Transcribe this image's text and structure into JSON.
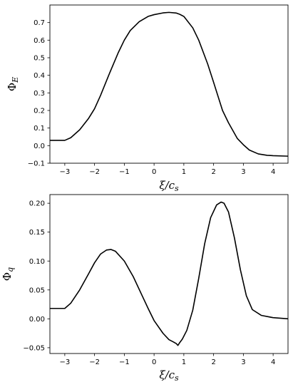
{
  "chart_data": [
    {
      "type": "line",
      "xlabel": "ξ/c",
      "xlabel_sub": "s",
      "ylabel": "Φ",
      "ylabel_sub": "E",
      "xlim": [
        -3.5,
        4.5
      ],
      "ylim": [
        -0.1,
        0.8
      ],
      "xticks": [
        -3,
        -2,
        -1,
        0,
        1,
        2,
        3,
        4
      ],
      "xtick_labels": [
        "−3",
        "−2",
        "−1",
        "0",
        "1",
        "2",
        "3",
        "4"
      ],
      "yticks": [
        -0.1,
        0.0,
        0.1,
        0.2,
        0.3,
        0.4,
        0.5,
        0.6,
        0.7
      ],
      "ytick_labels": [
        "−0.1",
        "0.0",
        "0.1",
        "0.2",
        "0.3",
        "0.4",
        "0.5",
        "0.6",
        "0.7"
      ],
      "grid": false,
      "series": [
        {
          "color": "#000000",
          "x": [
            -3.5,
            -3.0,
            -2.8,
            -2.5,
            -2.2,
            -2.0,
            -1.8,
            -1.5,
            -1.2,
            -1.0,
            -0.8,
            -0.5,
            -0.2,
            0.0,
            0.3,
            0.5,
            0.75,
            0.85,
            1.0,
            1.3,
            1.5,
            1.8,
            2.0,
            2.3,
            2.5,
            2.8,
            3.0,
            3.2,
            3.5,
            3.8,
            4.0,
            4.5
          ],
          "y": [
            0.03,
            0.03,
            0.045,
            0.09,
            0.155,
            0.21,
            0.285,
            0.41,
            0.53,
            0.6,
            0.655,
            0.705,
            0.735,
            0.745,
            0.755,
            0.758,
            0.754,
            0.748,
            0.735,
            0.67,
            0.6,
            0.465,
            0.36,
            0.2,
            0.13,
            0.04,
            0.005,
            -0.025,
            -0.047,
            -0.055,
            -0.057,
            -0.06
          ]
        }
      ]
    },
    {
      "type": "line",
      "xlabel": "ξ/c",
      "xlabel_sub": "s",
      "ylabel": "Φ",
      "ylabel_sub": "q",
      "xlim": [
        -3.5,
        4.5
      ],
      "ylim": [
        -0.06,
        0.215
      ],
      "xticks": [
        -3,
        -2,
        -1,
        0,
        1,
        2,
        3,
        4
      ],
      "xtick_labels": [
        "−3",
        "−2",
        "−1",
        "0",
        "1",
        "2",
        "3",
        "4"
      ],
      "yticks": [
        -0.05,
        0.0,
        0.05,
        0.1,
        0.15,
        0.2
      ],
      "ytick_labels": [
        "−0.05",
        "0.00",
        "0.05",
        "0.10",
        "0.15",
        "0.20"
      ],
      "grid": false,
      "series": [
        {
          "color": "#000000",
          "x": [
            -3.5,
            -3.0,
            -2.8,
            -2.5,
            -2.2,
            -2.0,
            -1.8,
            -1.6,
            -1.45,
            -1.3,
            -1.0,
            -0.7,
            -0.4,
            -0.2,
            0.0,
            0.3,
            0.5,
            0.65,
            0.75,
            0.8,
            0.85,
            0.95,
            1.1,
            1.3,
            1.5,
            1.7,
            1.9,
            2.1,
            2.25,
            2.35,
            2.5,
            2.7,
            2.9,
            3.1,
            3.3,
            3.6,
            4.0,
            4.5
          ],
          "y": [
            0.018,
            0.018,
            0.027,
            0.05,
            0.078,
            0.097,
            0.112,
            0.119,
            0.12,
            0.117,
            0.1,
            0.073,
            0.04,
            0.018,
            -0.003,
            -0.025,
            -0.036,
            -0.04,
            -0.043,
            -0.046,
            -0.042,
            -0.035,
            -0.02,
            0.015,
            0.07,
            0.13,
            0.175,
            0.197,
            0.202,
            0.2,
            0.185,
            0.14,
            0.085,
            0.04,
            0.016,
            0.006,
            0.002,
            0.0
          ]
        }
      ]
    }
  ]
}
